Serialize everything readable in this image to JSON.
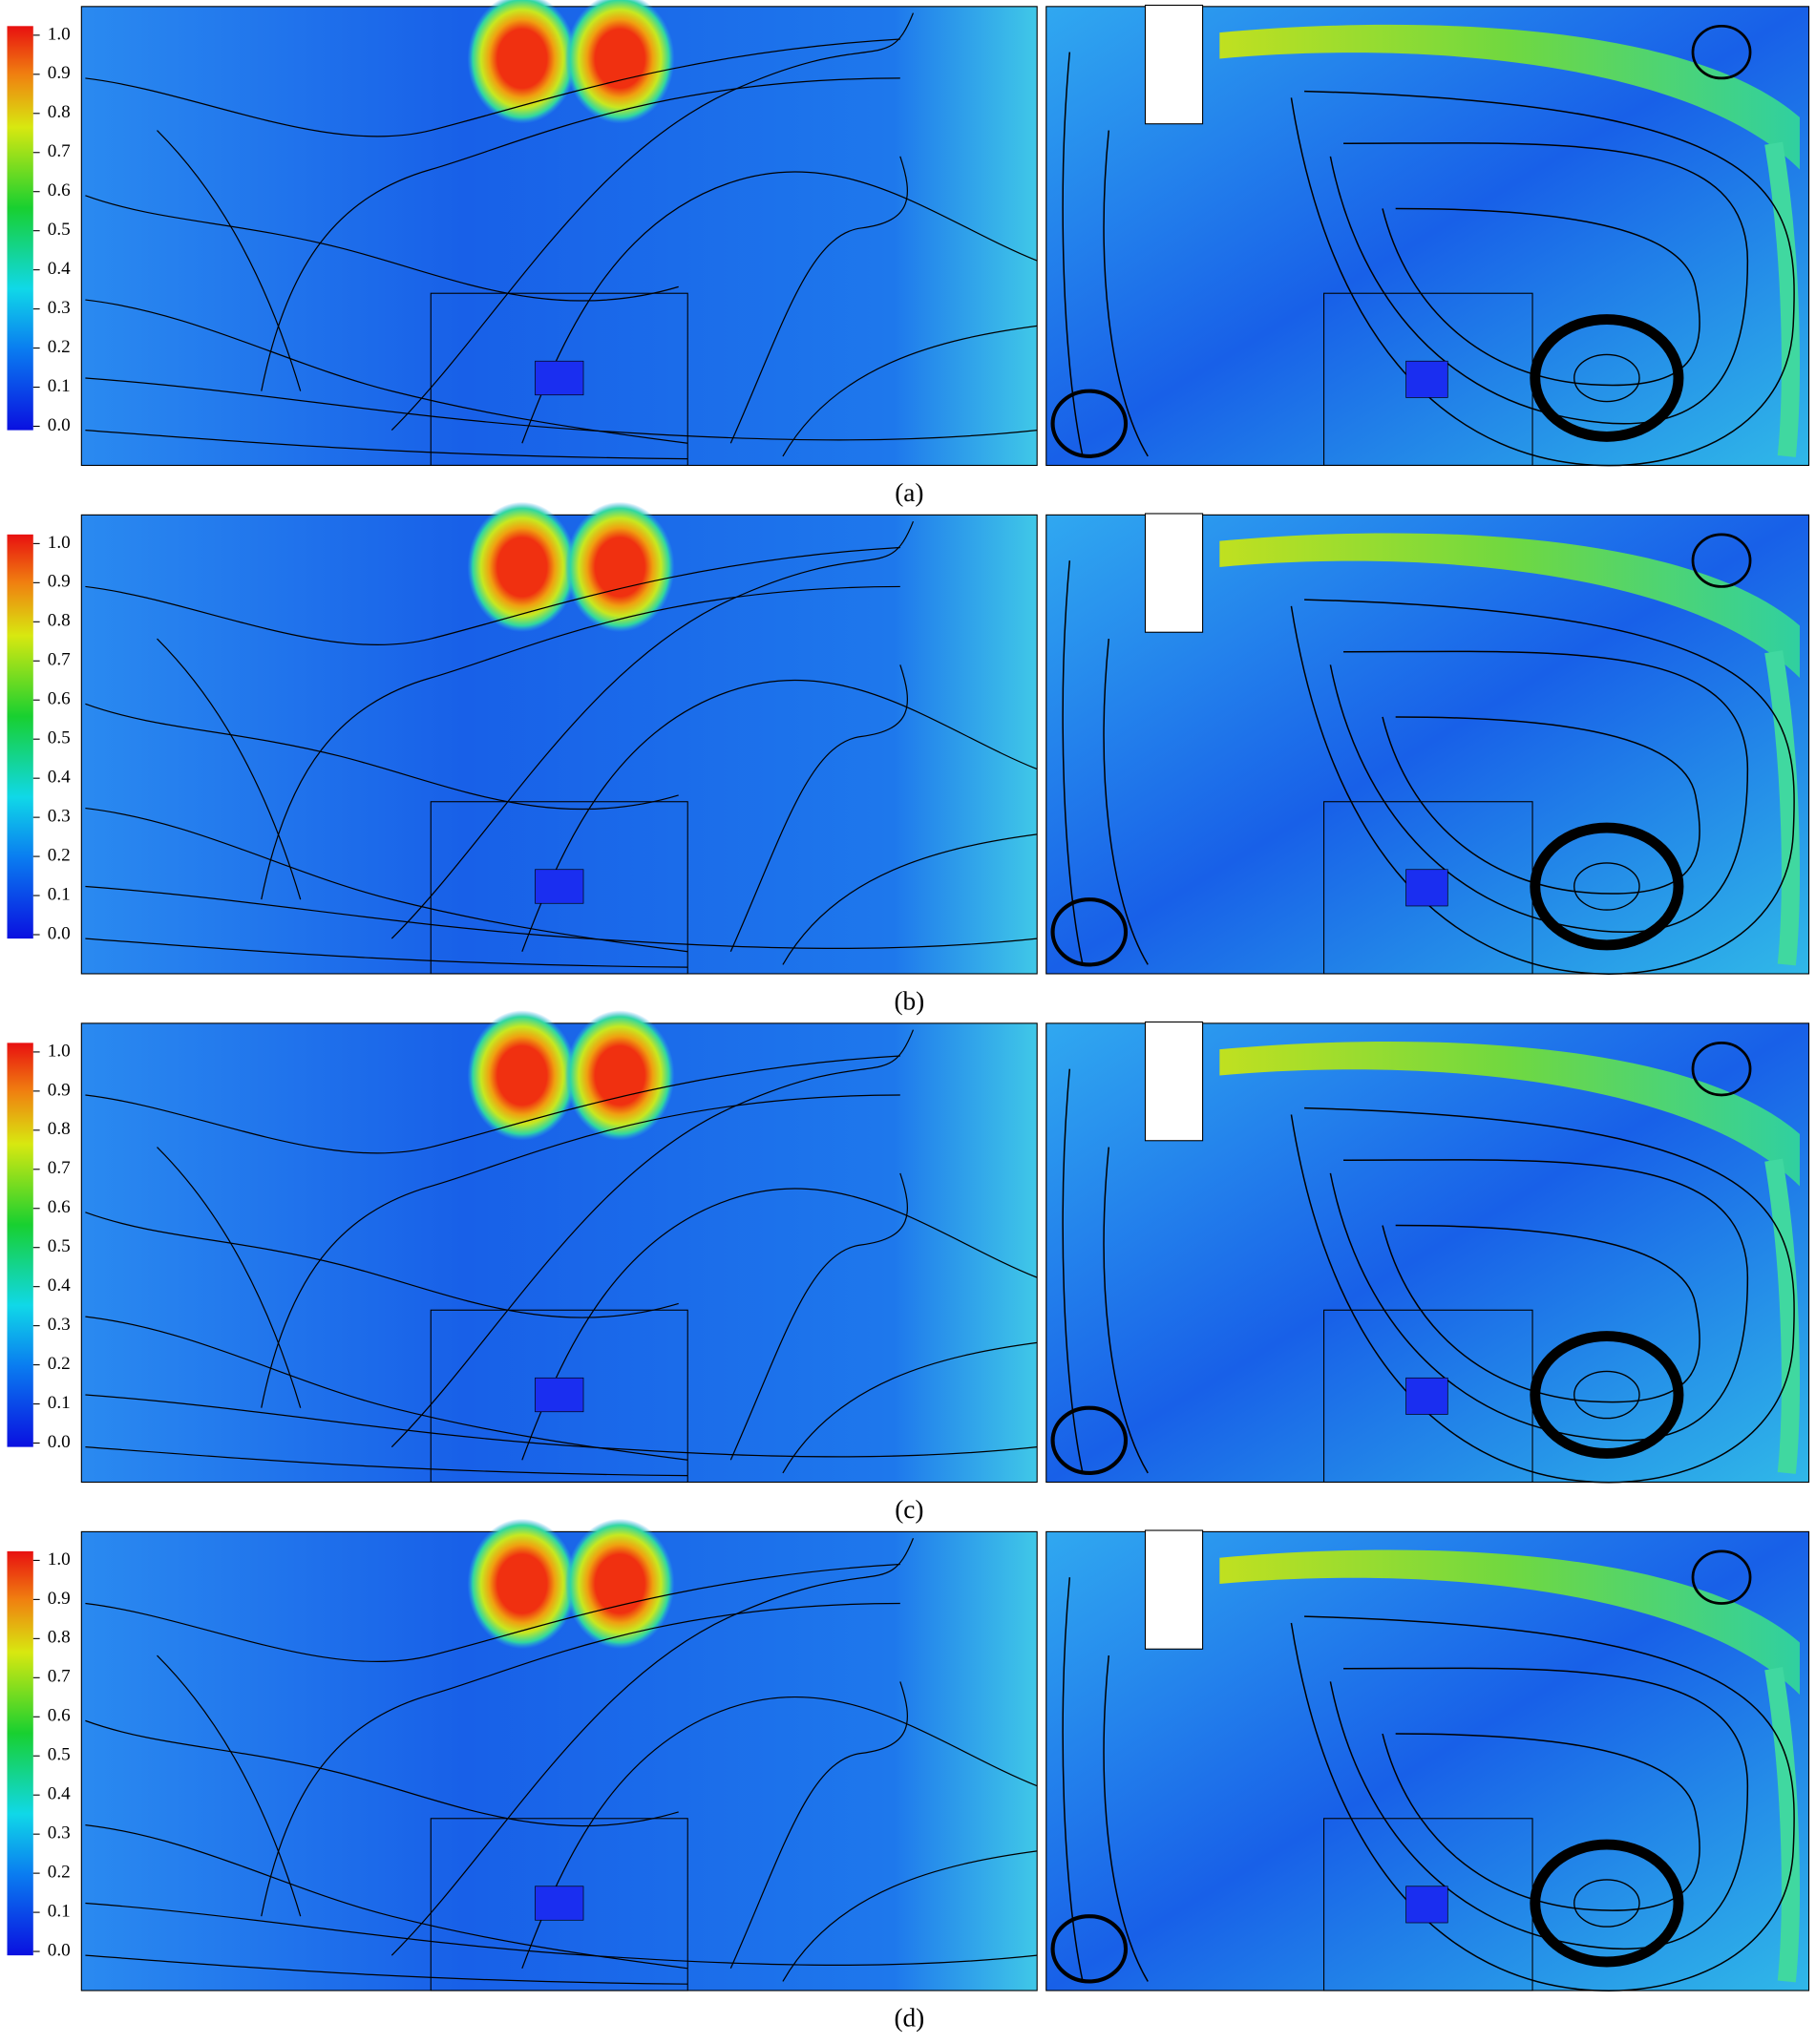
{
  "colorbar": {
    "ticks": [
      {
        "value": 0,
        "label": "0.0"
      },
      0.1,
      0.2,
      0.3,
      0.4,
      0.5,
      0.6,
      0.7,
      0.8,
      0.9,
      {
        "value": 1,
        "label": "1.0"
      }
    ]
  },
  "panels": [
    {
      "label": "(a)"
    },
    {
      "label": "(b)"
    },
    {
      "label": "(c)"
    },
    {
      "label": "(d)"
    }
  ]
}
